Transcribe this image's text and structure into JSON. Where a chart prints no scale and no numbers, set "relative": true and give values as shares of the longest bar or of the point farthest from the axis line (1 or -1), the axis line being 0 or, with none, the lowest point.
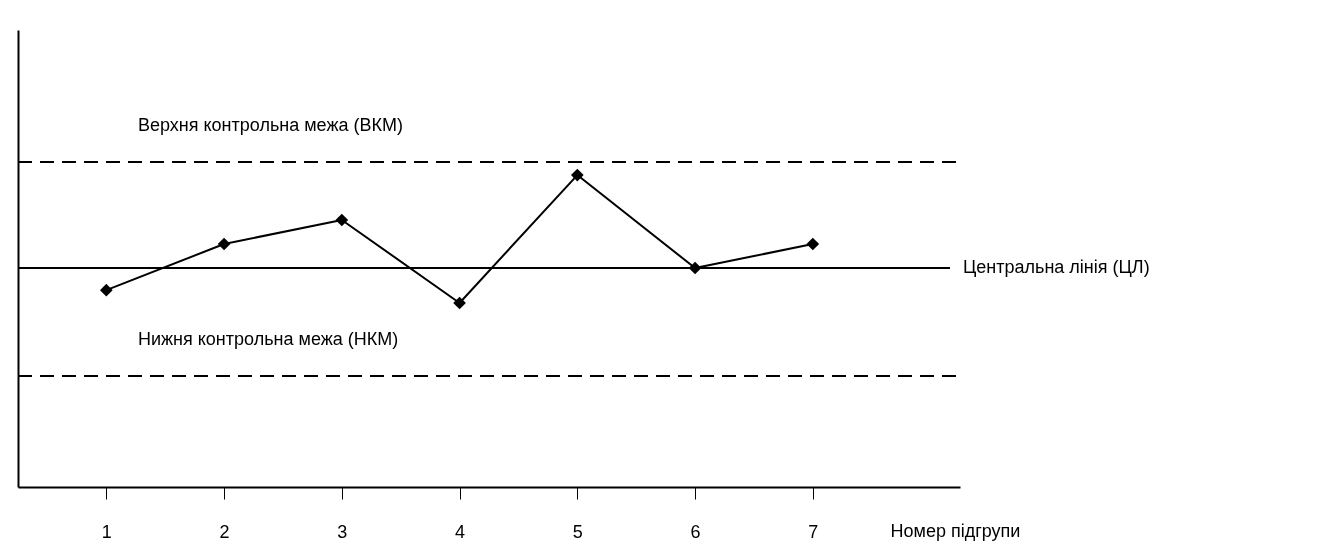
{
  "chart_data": {
    "type": "line",
    "relative": true,
    "xlabel": "Номер підгрупи",
    "categories": [
      "1",
      "2",
      "3",
      "4",
      "5",
      "6",
      "7"
    ],
    "series": [
      {
        "color": "#000000",
        "values": [
          0.631,
          0.779,
          0.856,
          0.59,
          1,
          0.702,
          0.779
        ]
      }
    ],
    "marker": "diamond",
    "line_style": "solid",
    "grid": false,
    "ref_lines": [
      {
        "axis": "y",
        "value": 1.042,
        "label": "Верхня контрольна межа (ВКМ)",
        "color": "#000000",
        "line_style": "dashed"
      },
      {
        "axis": "y",
        "value": 0.702,
        "label": "Центральна лінія (ЦЛ)",
        "color": "#000000",
        "line_style": "solid"
      },
      {
        "axis": "y",
        "value": 0.356,
        "label": "Нижня контрольна межа (НКМ)",
        "color": "#000000",
        "line_style": "dashed"
      }
    ]
  }
}
